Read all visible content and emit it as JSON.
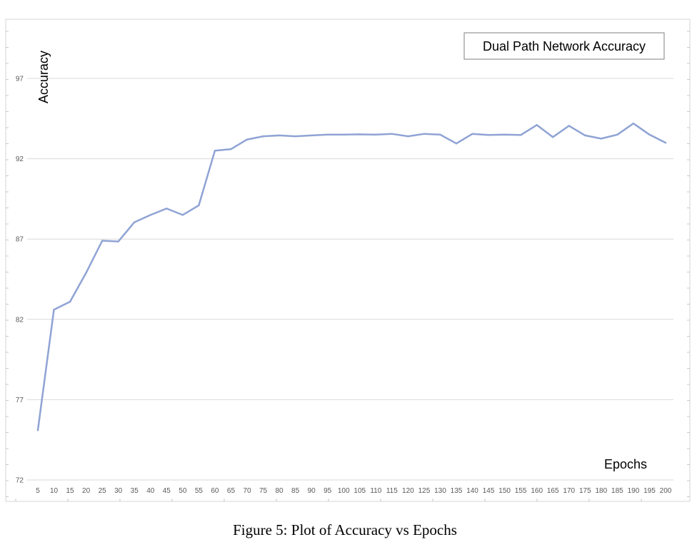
{
  "chart_data": {
    "type": "line",
    "title": "Dual Path Network Accuracy",
    "xlabel": "Epochs",
    "ylabel": "Accuracy",
    "y_ticks": [
      72,
      77,
      82,
      87,
      92,
      97
    ],
    "ylim": [
      72,
      98.5
    ],
    "x": [
      5,
      10,
      15,
      20,
      25,
      30,
      35,
      40,
      45,
      50,
      55,
      60,
      65,
      70,
      75,
      80,
      85,
      90,
      95,
      100,
      105,
      110,
      115,
      120,
      125,
      130,
      135,
      140,
      145,
      150,
      155,
      160,
      165,
      170,
      175,
      180,
      185,
      190,
      195,
      200
    ],
    "series": [
      {
        "values": [
          75.1,
          82.6,
          83.1,
          84.9,
          86.9,
          86.85,
          88.05,
          88.5,
          88.9,
          88.5,
          89.1,
          92.5,
          92.6,
          93.2,
          93.4,
          93.45,
          93.4,
          93.45,
          93.5,
          93.5,
          93.52,
          93.5,
          93.55,
          93.4,
          93.55,
          93.5,
          92.95,
          93.55,
          93.48,
          93.5,
          93.48,
          94.1,
          93.35,
          94.05,
          93.45,
          93.25,
          93.5,
          94.2,
          93.5,
          93.0
        ],
        "color": "#8fa3d4"
      }
    ],
    "grid": "horizontal",
    "title_position": "top-right",
    "legend": "none"
  },
  "caption": "Figure 5: Plot of Accuracy vs Epochs"
}
